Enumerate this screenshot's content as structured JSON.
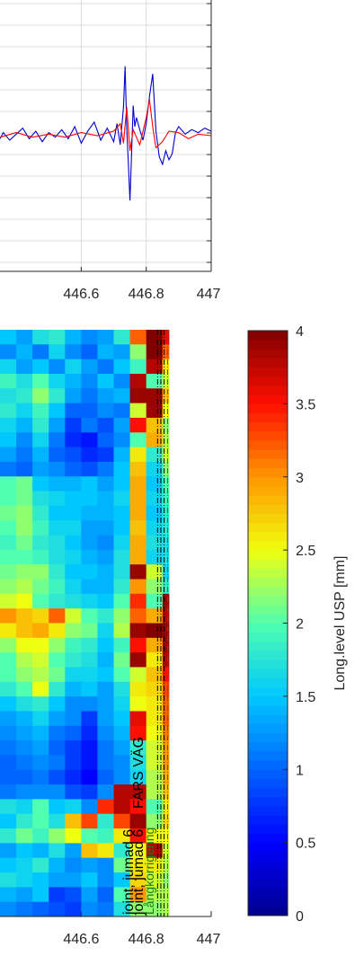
{
  "chart_data": [
    {
      "type": "line",
      "title": "",
      "xlabel": "",
      "ylabel": "",
      "xlim": [
        446.35,
        447
      ],
      "xticks": [
        446.6,
        446.8,
        447
      ],
      "xtick_labels": [
        "446.6",
        "446.8",
        "447"
      ],
      "grid": true,
      "series": [
        {
          "color": "#0000cc",
          "points": [
            [
              446.35,
              -0.2
            ],
            [
              446.36,
              0.2
            ],
            [
              446.38,
              -0.3
            ],
            [
              446.4,
              0.1
            ],
            [
              446.42,
              0.5
            ],
            [
              446.44,
              -0.2
            ],
            [
              446.46,
              0.3
            ],
            [
              446.48,
              -0.4
            ],
            [
              446.5,
              0.2
            ],
            [
              446.52,
              -0.1
            ],
            [
              446.54,
              0.4
            ],
            [
              446.56,
              -0.2
            ],
            [
              446.58,
              0.6
            ],
            [
              446.6,
              -0.5
            ],
            [
              446.62,
              0.3
            ],
            [
              446.64,
              0.9
            ],
            [
              446.66,
              -0.3
            ],
            [
              446.68,
              0.5
            ],
            [
              446.7,
              -0.4
            ],
            [
              446.71,
              0.8
            ],
            [
              446.72,
              -0.6
            ],
            [
              446.73,
              1.9
            ],
            [
              446.735,
              4.6
            ],
            [
              446.74,
              0.5
            ],
            [
              446.745,
              -1.8
            ],
            [
              446.75,
              -4.3
            ],
            [
              446.755,
              -1.2
            ],
            [
              446.76,
              2.0
            ],
            [
              446.765,
              0.6
            ],
            [
              446.77,
              1.2
            ],
            [
              446.78,
              0.4
            ],
            [
              446.79,
              -0.3
            ],
            [
              446.8,
              0.8
            ],
            [
              446.81,
              2.6
            ],
            [
              446.82,
              4.1
            ],
            [
              446.83,
              0.3
            ],
            [
              446.84,
              -1.4
            ],
            [
              446.85,
              -1.9
            ],
            [
              446.86,
              -1.0
            ],
            [
              446.87,
              -1.6
            ],
            [
              446.88,
              -1.2
            ],
            [
              446.89,
              0.2
            ],
            [
              446.9,
              0.6
            ],
            [
              446.92,
              0.1
            ],
            [
              446.94,
              0.4
            ],
            [
              446.96,
              0.2
            ],
            [
              446.98,
              0.5
            ],
            [
              447.0,
              0.3
            ]
          ]
        },
        {
          "color": "#ff0000",
          "points": [
            [
              446.35,
              -0.1
            ],
            [
              446.4,
              0.2
            ],
            [
              446.45,
              -0.1
            ],
            [
              446.5,
              0.1
            ],
            [
              446.55,
              -0.1
            ],
            [
              446.6,
              0.2
            ],
            [
              446.65,
              0.0
            ],
            [
              446.7,
              0.3
            ],
            [
              446.72,
              0.8
            ],
            [
              446.73,
              -0.5
            ],
            [
              446.74,
              1.9
            ],
            [
              446.75,
              -1.0
            ],
            [
              446.76,
              0.4
            ],
            [
              446.78,
              -0.6
            ],
            [
              446.8,
              1.2
            ],
            [
              446.81,
              2.4
            ],
            [
              446.82,
              0.6
            ],
            [
              446.83,
              -0.8
            ],
            [
              446.85,
              -0.4
            ],
            [
              446.87,
              0.3
            ],
            [
              446.9,
              0.2
            ],
            [
              446.93,
              -0.2
            ],
            [
              446.96,
              0.1
            ],
            [
              447.0,
              0.0
            ]
          ]
        }
      ]
    },
    {
      "type": "heatmap",
      "title": "",
      "xlabel": "",
      "ylabel": "",
      "xlim": [
        446.35,
        447
      ],
      "xticks": [
        446.6,
        446.8,
        447
      ],
      "xtick_labels": [
        "446.6",
        "446.8",
        "447"
      ],
      "x_edges": [
        446.35,
        446.4,
        446.45,
        446.5,
        446.55,
        446.6,
        446.65,
        446.7,
        446.75,
        446.8,
        446.85,
        446.87
      ],
      "row_count": 40,
      "rows": [
        [
          1.5,
          1.3,
          1.7,
          1.8,
          1.4,
          1.2,
          1.3,
          1.8,
          3.2,
          4.0,
          3.6
        ],
        [
          1.2,
          1.4,
          1.1,
          1.6,
          1.2,
          1.0,
          1.4,
          1.3,
          2.2,
          4.0,
          3.2
        ],
        [
          1.6,
          1.3,
          1.5,
          1.2,
          1.6,
          1.3,
          1.1,
          1.5,
          1.9,
          3.8,
          2.6
        ],
        [
          1.9,
          1.7,
          2.0,
          1.6,
          1.4,
          1.2,
          1.5,
          1.2,
          3.8,
          2.0,
          2.4
        ],
        [
          1.7,
          1.8,
          2.2,
          1.8,
          1.3,
          1.1,
          1.3,
          1.4,
          3.9,
          3.9,
          2.8
        ],
        [
          1.8,
          1.6,
          1.9,
          1.5,
          1.0,
          1.0,
          1.2,
          1.1,
          2.4,
          3.9,
          2.5
        ],
        [
          1.6,
          1.4,
          1.8,
          1.3,
          0.8,
          1.1,
          0.9,
          1.3,
          3.5,
          2.8,
          2.2
        ],
        [
          1.5,
          1.2,
          1.6,
          1.1,
          0.7,
          0.6,
          1.0,
          1.2,
          2.0,
          2.9,
          2.3
        ],
        [
          1.3,
          1.1,
          1.4,
          1.0,
          0.9,
          0.7,
          0.8,
          1.4,
          2.6,
          1.8,
          2.4
        ],
        [
          1.1,
          1.0,
          1.3,
          1.2,
          1.0,
          0.9,
          1.1,
          1.5,
          2.8,
          1.6,
          2.2
        ],
        [
          2.0,
          2.1,
          1.5,
          1.4,
          1.4,
          1.5,
          1.3,
          1.5,
          2.9,
          1.5,
          2.0
        ],
        [
          2.0,
          2.1,
          1.7,
          1.6,
          1.5,
          1.5,
          1.4,
          1.6,
          2.9,
          1.6,
          1.9
        ],
        [
          2.1,
          2.2,
          1.8,
          1.5,
          1.5,
          1.4,
          1.4,
          1.5,
          2.9,
          1.5,
          1.8
        ],
        [
          2.0,
          2.2,
          1.9,
          1.6,
          1.6,
          1.3,
          1.3,
          1.5,
          2.8,
          1.6,
          1.8
        ],
        [
          1.9,
          2.1,
          1.8,
          1.7,
          1.5,
          1.3,
          1.2,
          1.6,
          2.9,
          1.7,
          1.7
        ],
        [
          2.0,
          2.0,
          1.9,
          1.7,
          1.6,
          1.4,
          1.3,
          1.7,
          2.9,
          1.6,
          1.7
        ],
        [
          2.1,
          2.2,
          2.2,
          1.8,
          1.5,
          1.5,
          1.4,
          1.7,
          3.9,
          2.4,
          1.6
        ],
        [
          2.2,
          2.3,
          2.1,
          1.9,
          1.6,
          1.4,
          1.4,
          1.8,
          3.0,
          2.2,
          1.8
        ],
        [
          2.4,
          2.5,
          2.0,
          1.8,
          1.7,
          1.6,
          1.5,
          2.0,
          3.4,
          2.0,
          3.9
        ],
        [
          3.0,
          2.8,
          2.7,
          3.2,
          2.4,
          2.0,
          1.8,
          2.2,
          3.2,
          2.9,
          3.8
        ],
        [
          2.6,
          2.8,
          2.9,
          2.6,
          2.2,
          2.1,
          1.6,
          2.3,
          3.9,
          4.0,
          3.9
        ],
        [
          2.2,
          2.5,
          2.5,
          2.2,
          1.9,
          1.8,
          1.5,
          1.9,
          3.5,
          2.9,
          3.9
        ],
        [
          2.0,
          2.3,
          2.4,
          2.0,
          1.8,
          1.7,
          1.4,
          2.1,
          3.9,
          2.6,
          3.8
        ],
        [
          2.0,
          2.2,
          2.3,
          2.1,
          1.6,
          1.6,
          1.5,
          2.0,
          2.4,
          2.8,
          3.5
        ],
        [
          1.8,
          2.0,
          2.5,
          1.8,
          1.4,
          1.5,
          1.3,
          1.7,
          2.6,
          2.7,
          3.3
        ],
        [
          1.5,
          1.7,
          1.8,
          1.5,
          1.2,
          1.2,
          1.3,
          1.6,
          2.5,
          2.6,
          3.2
        ],
        [
          1.3,
          1.4,
          1.6,
          1.3,
          1.2,
          0.8,
          1.3,
          1.5,
          3.6,
          2.6,
          3.2
        ],
        [
          1.2,
          1.3,
          1.4,
          1.1,
          1.0,
          0.7,
          1.2,
          1.4,
          3.5,
          2.5,
          3.1
        ],
        [
          1.1,
          1.2,
          1.3,
          1.0,
          0.8,
          0.6,
          1.1,
          1.3,
          1.8,
          2.4,
          3.0
        ],
        [
          1.0,
          1.1,
          1.2,
          1.1,
          0.8,
          0.6,
          1.1,
          1.2,
          1.7,
          2.4,
          3.0
        ],
        [
          1.0,
          1.0,
          1.1,
          0.9,
          0.7,
          0.5,
          1.0,
          1.2,
          1.6,
          2.3,
          2.9
        ],
        [
          1.1,
          1.2,
          1.2,
          1.2,
          0.9,
          0.8,
          1.2,
          3.8,
          3.8,
          2.3,
          2.8
        ],
        [
          1.7,
          1.6,
          2.0,
          1.5,
          1.6,
          1.2,
          3.4,
          3.8,
          3.5,
          2.0,
          2.6
        ],
        [
          1.5,
          1.8,
          2.0,
          1.7,
          2.8,
          3.3,
          1.8,
          3.3,
          3.9,
          2.2,
          2.7
        ],
        [
          1.8,
          2.1,
          1.9,
          2.2,
          2.5,
          2.0,
          1.9,
          2.6,
          3.5,
          2.5,
          2.5
        ],
        [
          1.3,
          1.5,
          1.4,
          1.7,
          1.3,
          2.8,
          2.6,
          1.8,
          2.5,
          3.8,
          2.4
        ],
        [
          1.5,
          1.6,
          1.8,
          1.4,
          1.2,
          1.3,
          1.2,
          2.1,
          2.6,
          2.6,
          2.3
        ],
        [
          1.7,
          1.6,
          1.5,
          1.3,
          1.3,
          1.5,
          1.2,
          1.5,
          2.7,
          2.4,
          2.2
        ],
        [
          1.4,
          1.3,
          1.5,
          0.8,
          0.9,
          1.3,
          1.0,
          2.0,
          3.0,
          2.3,
          2.3
        ],
        [
          1.2,
          1.1,
          1.0,
          0.9,
          0.8,
          1.2,
          1.1,
          1.7,
          2.2,
          2.2,
          2.3
        ]
      ],
      "markers": [
        {
          "x": 446.835,
          "color": "#000000",
          "label": "joint, jumad 6"
        },
        {
          "x": 446.845,
          "color": "#000000",
          "label": "joint, jumad 6"
        },
        {
          "x": 446.855,
          "color": "#000000",
          "label": "FARS VÄG"
        },
        {
          "x": 446.866,
          "color": "#1a7a1a",
          "label": "Långkorrigering"
        }
      ],
      "colorbar": {
        "label": "Long.level USP [mm]",
        "range": [
          0,
          4
        ],
        "ticks": [
          0,
          0.5,
          1,
          1.5,
          2,
          2.5,
          3,
          3.5,
          4
        ],
        "tick_labels": [
          "0",
          "0.5",
          "1",
          "1.5",
          "2",
          "2.5",
          "3",
          "3.5",
          "4"
        ]
      }
    }
  ]
}
